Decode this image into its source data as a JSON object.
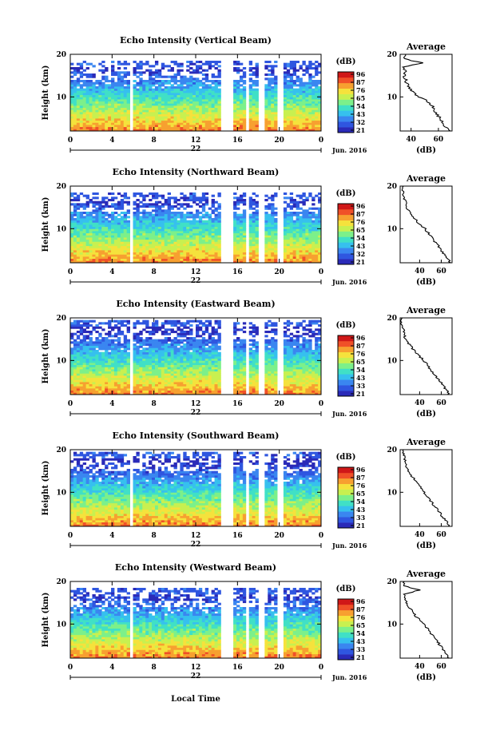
{
  "colors": [
    "#2a2ab8",
    "#2f56e0",
    "#3a86f0",
    "#36c0ee",
    "#40e0c6",
    "#7cf08a",
    "#c8f050",
    "#f5e23c",
    "#f7a030",
    "#f05028",
    "#d01818"
  ],
  "common": {
    "ylabel": "Height (km)",
    "x_ticks": [
      "0",
      "4",
      "8",
      "12",
      "16",
      "20",
      "0"
    ],
    "date_day": "22",
    "date_month": "Jun. 2016",
    "unit": "(dB)",
    "colorbar_ticks": [
      "96",
      "87",
      "76",
      "65",
      "54",
      "43",
      "32",
      "21"
    ],
    "avg_title": "Average",
    "avg_xlabel": "(dB)",
    "avg_x_ticks": [
      "40",
      "60"
    ],
    "avg_y_ticks": [
      "20",
      "10"
    ],
    "y_ticks": [
      "20",
      "10"
    ],
    "xlabel_bottom": "Local Time"
  },
  "panels": [
    {
      "title": "Echo Intensity (Vertical Beam)",
      "colorbar_ticks": [
        "96",
        "87",
        "76",
        "65",
        "54",
        "43",
        "32",
        "21"
      ]
    },
    {
      "title": "Echo Intensity (Northward Beam)",
      "colorbar_ticks": [
        "96",
        "87",
        "76",
        "65",
        "54",
        "43",
        "32",
        "21"
      ]
    },
    {
      "title": "Echo Intensity (Eastward Beam)",
      "colorbar_ticks": [
        "96",
        "87",
        "76",
        "65",
        "54",
        "43",
        "33",
        "21"
      ]
    },
    {
      "title": "Echo Intensity (Southward Beam)",
      "colorbar_ticks": [
        "96",
        "87",
        "76",
        "65",
        "54",
        "43",
        "33",
        "21"
      ]
    },
    {
      "title": "Echo Intensity (Westward Beam)",
      "colorbar_ticks": [
        "96",
        "87",
        "76",
        "65",
        "54",
        "43",
        "33",
        "21"
      ]
    }
  ],
  "chart_data": [
    {
      "type": "heatmap",
      "title": "Echo Intensity (Vertical Beam)",
      "xlabel": "",
      "ylabel": "Height (km)",
      "xlim": [
        0,
        24
      ],
      "ylim": [
        2,
        20
      ],
      "clim": [
        21,
        96
      ],
      "data_gaps_hours": [
        [
          5.6,
          6.0
        ],
        [
          14.5,
          15.5
        ],
        [
          16.8,
          17.2
        ],
        [
          17.9,
          18.7
        ],
        [
          19.8,
          20.3
        ]
      ],
      "top_echo_km": 18,
      "average_profile": {
        "x_label": "(dB)",
        "xlim": [
          32,
          70
        ],
        "height_km": [
          2,
          3,
          4,
          5,
          6,
          7,
          8,
          9,
          10,
          11,
          12,
          13,
          14,
          15,
          16,
          17,
          18,
          19,
          20
        ],
        "db": [
          69,
          65,
          63,
          61,
          59,
          57,
          55,
          52,
          46,
          42,
          39,
          37,
          36,
          35,
          36,
          35,
          48,
          34,
          36
        ]
      }
    },
    {
      "type": "heatmap",
      "title": "Echo Intensity (Northward Beam)",
      "xlabel": "",
      "ylabel": "Height (km)",
      "xlim": [
        0,
        24
      ],
      "ylim": [
        2,
        20
      ],
      "clim": [
        21,
        96
      ],
      "data_gaps_hours": [
        [
          5.6,
          6.0
        ],
        [
          14.5,
          15.5
        ],
        [
          16.8,
          17.2
        ],
        [
          17.9,
          18.7
        ],
        [
          19.8,
          20.3
        ]
      ],
      "top_echo_km": 18,
      "average_profile": {
        "x_label": "(dB)",
        "xlim": [
          22,
          70
        ],
        "height_km": [
          2,
          3,
          4,
          5,
          6,
          7,
          8,
          9,
          10,
          11,
          12,
          13,
          14,
          15,
          16,
          17,
          18,
          19,
          20
        ],
        "db": [
          68,
          66,
          63,
          60,
          57,
          54,
          51,
          48,
          45,
          40,
          37,
          34,
          31,
          28,
          27,
          26,
          25,
          24,
          25
        ]
      }
    },
    {
      "type": "heatmap",
      "title": "Echo Intensity (Eastward Beam)",
      "xlabel": "",
      "ylabel": "Height (km)",
      "xlim": [
        0,
        24
      ],
      "ylim": [
        2,
        20
      ],
      "clim": [
        21,
        96
      ],
      "data_gaps_hours": [
        [
          5.6,
          6.0
        ],
        [
          14.5,
          15.5
        ],
        [
          16.8,
          17.2
        ],
        [
          17.9,
          18.7
        ],
        [
          19.8,
          20.3
        ]
      ],
      "top_echo_km": 19,
      "average_profile": {
        "x_label": "(dB)",
        "xlim": [
          22,
          70
        ],
        "height_km": [
          2,
          3,
          4,
          5,
          6,
          7,
          8,
          9,
          10,
          11,
          12,
          13,
          14,
          15,
          16,
          17,
          18,
          19,
          20
        ],
        "db": [
          67,
          65,
          62,
          59,
          56,
          53,
          50,
          47,
          44,
          40,
          36,
          33,
          30,
          27,
          26,
          25,
          24,
          23,
          24
        ]
      }
    },
    {
      "type": "heatmap",
      "title": "Echo Intensity (Southward Beam)",
      "xlabel": "",
      "ylabel": "Height (km)",
      "xlim": [
        0,
        24
      ],
      "ylim": [
        2,
        20
      ],
      "clim": [
        21,
        96
      ],
      "data_gaps_hours": [
        [
          5.6,
          6.0
        ],
        [
          14.5,
          15.5
        ],
        [
          16.8,
          17.2
        ],
        [
          17.9,
          18.7
        ],
        [
          19.8,
          20.3
        ]
      ],
      "top_echo_km": 19,
      "average_profile": {
        "x_label": "(dB)",
        "xlim": [
          22,
          70
        ],
        "height_km": [
          2,
          3,
          4,
          5,
          6,
          7,
          8,
          9,
          10,
          11,
          12,
          13,
          14,
          15,
          16,
          17,
          18,
          19,
          20
        ],
        "db": [
          67,
          65,
          62,
          59,
          56,
          53,
          50,
          47,
          44,
          41,
          38,
          35,
          32,
          30,
          28,
          27,
          26,
          25,
          25
        ]
      }
    },
    {
      "type": "heatmap",
      "title": "Echo Intensity (Westward Beam)",
      "xlabel": "Local Time",
      "ylabel": "Height (km)",
      "xlim": [
        0,
        24
      ],
      "ylim": [
        2,
        20
      ],
      "clim": [
        21,
        96
      ],
      "data_gaps_hours": [
        [
          5.6,
          6.0
        ],
        [
          14.5,
          15.5
        ],
        [
          16.8,
          17.2
        ],
        [
          17.9,
          18.7
        ],
        [
          19.8,
          20.3
        ]
      ],
      "top_echo_km": 18,
      "average_profile": {
        "x_label": "(dB)",
        "xlim": [
          22,
          70
        ],
        "height_km": [
          2,
          3,
          4,
          5,
          6,
          7,
          8,
          9,
          10,
          11,
          12,
          13,
          14,
          15,
          16,
          17,
          18,
          19,
          20
        ],
        "db": [
          67,
          65,
          62,
          59,
          56,
          53,
          50,
          47,
          44,
          40,
          36,
          33,
          30,
          28,
          27,
          26,
          40,
          25,
          26
        ]
      }
    }
  ]
}
